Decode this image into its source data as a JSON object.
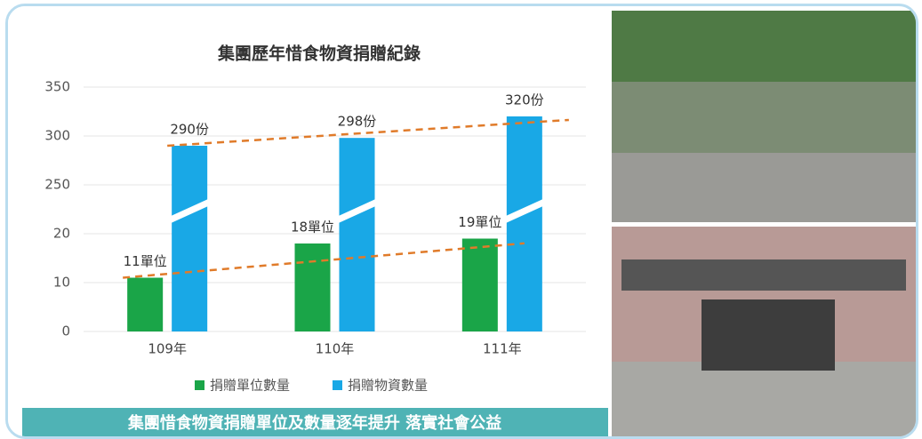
{
  "chart_data": {
    "type": "bar",
    "title": "集團歷年惜食物資捐贈紀錄",
    "categories": [
      "109年",
      "110年",
      "111年"
    ],
    "series": [
      {
        "name": "捐贈單位數量",
        "color": "#1aa548",
        "values": [
          11,
          18,
          19
        ],
        "value_labels": [
          "11單位",
          "18單位",
          "19單位"
        ]
      },
      {
        "name": "捐贈物資數量",
        "color": "#19a8e6",
        "values": [
          290,
          298,
          320
        ],
        "value_labels": [
          "290份",
          "298份",
          "320份"
        ]
      }
    ],
    "ylim": [
      0,
      350
    ],
    "yticks": [
      0,
      10,
      20,
      250,
      300,
      350
    ],
    "grid": true,
    "trend_color": "#e07b2a",
    "footer": "集團惜食物資捐贈單位及數量逐年提升 落實社會公益"
  }
}
